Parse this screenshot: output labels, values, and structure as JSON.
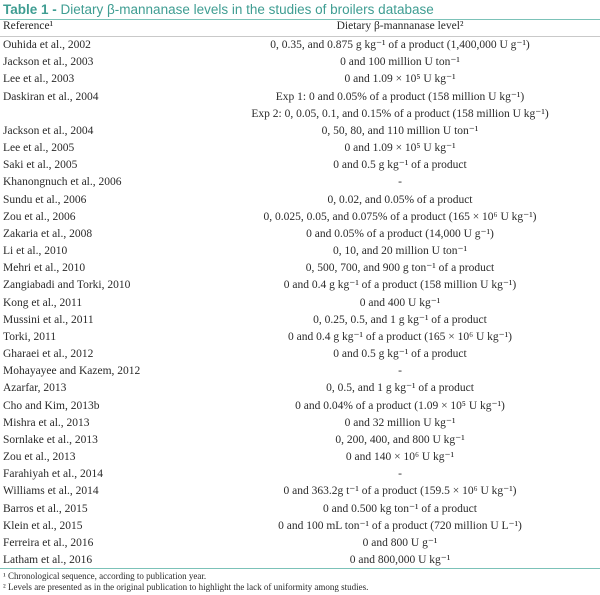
{
  "table": {
    "title_number": "Table 1 -",
    "title_text": " Dietary β-mannanase levels in the studies of broilers database",
    "headers": [
      "Reference¹",
      "Dietary β-mannanase level²"
    ],
    "rows": [
      [
        "Ouhida et al., 2002",
        "0, 0.35, and 0.875 g kg⁻¹ of a product (1,400,000 U g⁻¹)"
      ],
      [
        "Jackson et al., 2003",
        "0 and 100 million U ton⁻¹"
      ],
      [
        "Lee et al., 2003",
        "0 and 1.09 × 10⁵ U kg⁻¹"
      ],
      [
        "Daskiran et al., 2004",
        "Exp 1: 0 and 0.05% of a product (158 million U kg⁻¹)"
      ],
      [
        "",
        "Exp 2: 0, 0.05, 0.1, and 0.15% of a product (158 million U kg⁻¹)"
      ],
      [
        "Jackson et al., 2004",
        "0, 50, 80, and 110 million U ton⁻¹"
      ],
      [
        "Lee et al., 2005",
        "0 and 1.09 × 10⁵ U kg⁻¹"
      ],
      [
        "Saki et al., 2005",
        "0 and 0.5 g kg⁻¹ of a product"
      ],
      [
        "Khanongnuch et al., 2006",
        "-"
      ],
      [
        "Sundu et al., 2006",
        "0, 0.02, and 0.05% of a product"
      ],
      [
        "Zou et al., 2006",
        "0, 0.025, 0.05, and 0.075% of a product (165 × 10⁶ U kg⁻¹)"
      ],
      [
        "Zakaria et al., 2008",
        "0 and 0.05% of a product (14,000 U g⁻¹)"
      ],
      [
        "Li et al., 2010",
        "0, 10, and 20 million U ton⁻¹"
      ],
      [
        "Mehri et al., 2010",
        "0, 500, 700, and 900 g ton⁻¹ of a product"
      ],
      [
        "Zangiabadi and Torki, 2010",
        "0 and 0.4 g kg⁻¹ of a product (158 million U kg⁻¹)"
      ],
      [
        "Kong et al., 2011",
        "0 and 400 U kg⁻¹"
      ],
      [
        "Mussini et al., 2011",
        "0, 0.25, 0.5, and 1 g kg⁻¹ of a product"
      ],
      [
        "Torki, 2011",
        "0 and 0.4 g kg⁻¹ of a product (165 × 10⁶ U kg⁻¹)"
      ],
      [
        "Gharaei et al., 2012",
        "0 and 0.5 g kg⁻¹ of a product"
      ],
      [
        "Mohayayee and Kazem, 2012",
        "-"
      ],
      [
        "Azarfar, 2013",
        "0, 0.5, and 1 g kg⁻¹ of a product"
      ],
      [
        "Cho and Kim, 2013b",
        "0 and 0.04% of a product (1.09 × 10⁵ U kg⁻¹)"
      ],
      [
        "Mishra et al., 2013",
        "0 and 32 million U kg⁻¹"
      ],
      [
        "Sornlake et al., 2013",
        "0, 200, 400, and 800 U kg⁻¹"
      ],
      [
        "Zou et al., 2013",
        "0 and 140 × 10⁶ U kg⁻¹"
      ],
      [
        "Farahiyah et al., 2014",
        "-"
      ],
      [
        "Williams et al., 2014",
        "0 and 363.2g t⁻¹ of a product (159.5 × 10⁶ U kg⁻¹)"
      ],
      [
        "Barros et al., 2015",
        "0 and 0.500 kg ton⁻¹ of a product"
      ],
      [
        "Klein et al., 2015",
        "0 and 100 mL ton⁻¹ of a product (720 million U L⁻¹)"
      ],
      [
        "Ferreira et al., 2016",
        "0 and 800 U g⁻¹"
      ],
      [
        "Latham et al., 2016",
        "0 and 800,000 U kg⁻¹"
      ]
    ],
    "footnotes": [
      "¹ Chronological sequence, according to publication year.",
      "² Levels are presented as in the original publication to highlight the lack of uniformity among studies."
    ]
  },
  "colors": {
    "accent": "#3f9d92",
    "rule": "#7cc2b8"
  }
}
